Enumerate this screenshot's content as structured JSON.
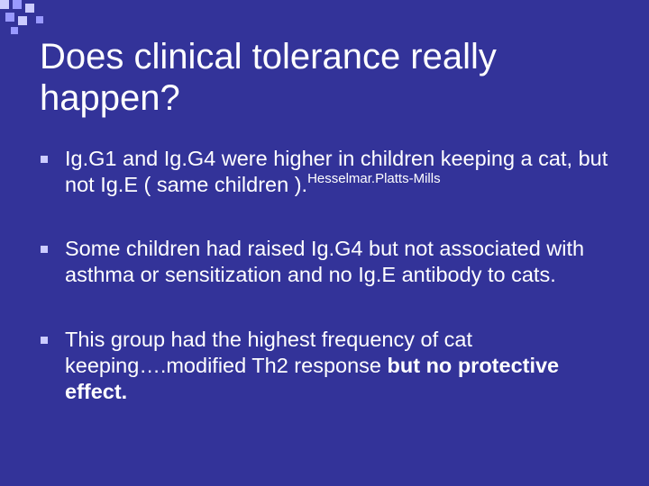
{
  "slide": {
    "title": "Does clinical tolerance really happen?",
    "bullets": [
      {
        "text": "Ig.G1 and Ig.G4 were higher in children keeping a cat, but not Ig.E ( same children ).",
        "superscript": "Hesselmar.Platts-Mills"
      },
      {
        "text": "Some children had raised Ig.G4 but not associated with asthma or sensitization and no Ig.E antibody to cats."
      },
      {
        "text": "This group had the highest frequency of cat keeping….modified Th2 response ",
        "bold": "but no protective effect."
      }
    ]
  }
}
